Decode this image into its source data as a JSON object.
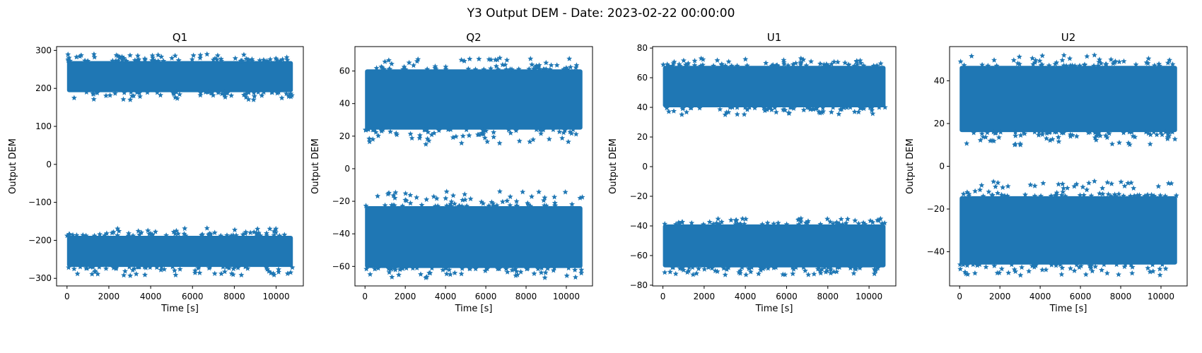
{
  "figure": {
    "title": "Y3 Output DEM - Date: 2023-02-22 00:00:00"
  },
  "chart_data": [
    {
      "type": "scatter",
      "title": "Q1",
      "xlabel": "Time [s]",
      "ylabel": "Output DEM",
      "xlim": [
        -500,
        11300
      ],
      "ylim": [
        -320,
        310
      ],
      "xticks": [
        0,
        2000,
        4000,
        6000,
        8000,
        10000
      ],
      "yticks": [
        -300,
        -200,
        -100,
        0,
        100,
        200,
        300
      ],
      "marker": "star",
      "color": "#1f77b4",
      "x_range": [
        0,
        10800
      ],
      "bands": [
        {
          "center": 230,
          "core_low": 190,
          "core_high": 272,
          "min": 170,
          "max": 290
        },
        {
          "center": -230,
          "core_low": -270,
          "core_high": -188,
          "min": -293,
          "max": -168
        }
      ]
    },
    {
      "type": "scatter",
      "title": "Q2",
      "xlabel": "Time [s]",
      "ylabel": "Output DEM",
      "xlim": [
        -500,
        11300
      ],
      "ylim": [
        -72,
        75
      ],
      "xticks": [
        0,
        2000,
        4000,
        6000,
        8000,
        10000
      ],
      "yticks": [
        -60,
        -40,
        -20,
        0,
        20,
        40,
        60
      ],
      "marker": "star",
      "color": "#1f77b4",
      "x_range": [
        0,
        10800
      ],
      "bands": [
        {
          "center": 42,
          "core_low": 24,
          "core_high": 61,
          "min": 15,
          "max": 68
        },
        {
          "center": -42,
          "core_low": -61,
          "core_high": -23,
          "min": -67,
          "max": -14
        }
      ]
    },
    {
      "type": "scatter",
      "title": "U1",
      "xlabel": "Time [s]",
      "ylabel": "Output DEM",
      "xlim": [
        -500,
        11300
      ],
      "ylim": [
        -80.5,
        81
      ],
      "xticks": [
        0,
        2000,
        4000,
        6000,
        8000,
        10000
      ],
      "yticks": [
        -80,
        -60,
        -40,
        -20,
        0,
        20,
        40,
        60,
        80
      ],
      "marker": "star",
      "color": "#1f77b4",
      "x_range": [
        0,
        10800
      ],
      "bands": [
        {
          "center": 53,
          "core_low": 40,
          "core_high": 68,
          "min": 35,
          "max": 73
        },
        {
          "center": -53,
          "core_low": -68,
          "core_high": -39,
          "min": -73,
          "max": -35
        }
      ]
    },
    {
      "type": "scatter",
      "title": "U2",
      "xlabel": "Time [s]",
      "ylabel": "Output DEM",
      "xlim": [
        -500,
        11300
      ],
      "ylim": [
        -56,
        56
      ],
      "xticks": [
        0,
        2000,
        4000,
        6000,
        8000,
        10000
      ],
      "yticks": [
        -40,
        -20,
        0,
        20,
        40
      ],
      "marker": "star",
      "color": "#1f77b4",
      "x_range": [
        0,
        10800
      ],
      "bands": [
        {
          "center": 30,
          "core_low": 16,
          "core_high": 47,
          "min": 10,
          "max": 52
        },
        {
          "center": -30,
          "core_low": -46,
          "core_high": -14,
          "min": -51,
          "max": -7
        }
      ]
    }
  ]
}
